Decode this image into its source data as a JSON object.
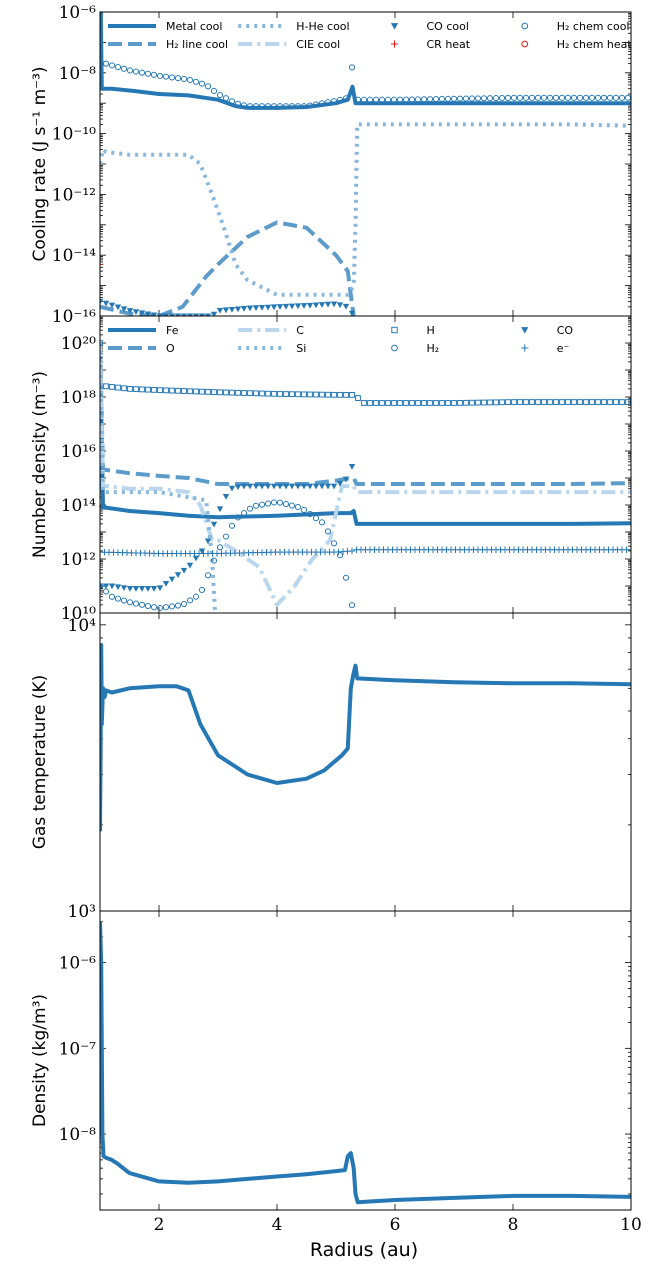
{
  "figure": {
    "xlabel": "Radius (au)",
    "x_ticks": [
      2,
      4,
      6,
      8,
      10
    ],
    "x_range": [
      1,
      10
    ]
  },
  "colors": {
    "c1": "#2678b4",
    "c2": "#5d9cca",
    "c3": "#8ab8dd",
    "c4": "#b9d6ec",
    "red": "#e41a1c"
  },
  "chart_data": [
    {
      "type": "line",
      "yscale": "log",
      "ylabel": "Cooling rate (J s⁻¹ m⁻³)",
      "ylim": [
        1e-16,
        1e-06
      ],
      "y_ticks": [
        {
          "v": 1e-16,
          "t": "10⁻¹⁶"
        },
        {
          "v": 1e-14,
          "t": "10⁻¹⁴"
        },
        {
          "v": 1e-12,
          "t": "10⁻¹²"
        },
        {
          "v": 1e-10,
          "t": "10⁻¹⁰"
        },
        {
          "v": 1e-08,
          "t": "10⁻⁸"
        },
        {
          "v": 1e-06,
          "t": "10⁻⁶"
        }
      ],
      "legend_placement": "top",
      "legend_cols": 4,
      "series": [
        {
          "name": "Metal cool",
          "style": "solid",
          "color": "c1",
          "x": [
            1.0,
            1.03,
            1.05,
            1.2,
            1.6,
            2.0,
            2.5,
            3.0,
            3.3,
            3.5,
            4.0,
            4.5,
            5.0,
            5.2,
            5.28,
            5.33,
            5.37,
            6.0,
            7.0,
            8.0,
            9.0,
            10.0
          ],
          "y": [
            5e-05,
            3e-09,
            3e-09,
            3e-09,
            2.5e-09,
            2e-09,
            1.8e-09,
            1.3e-09,
            8e-10,
            7e-10,
            7e-10,
            7.5e-10,
            1e-09,
            1.3e-09,
            3.5e-09,
            1e-09,
            1e-09,
            1e-09,
            1e-09,
            1e-09,
            1e-09,
            1e-09
          ]
        },
        {
          "name": "H₂ line cool",
          "style": "dash",
          "color": "c2",
          "x": [
            1.0,
            1.5,
            2.0,
            2.4,
            2.8,
            3.0,
            3.5,
            4.0,
            4.5,
            5.0,
            5.2,
            5.25,
            5.3
          ],
          "y": [
            2e-16,
            1.2e-16,
            1e-16,
            2e-16,
            2e-15,
            5e-15,
            4e-14,
            1.2e-13,
            8e-14,
            1e-14,
            3e-15,
            5e-16,
            1e-16
          ]
        },
        {
          "name": "H-He cool",
          "style": "dot",
          "color": "c3",
          "x": [
            1.0,
            1.05,
            1.1,
            1.5,
            2.0,
            2.5,
            2.7,
            2.9,
            3.1,
            3.3,
            3.5,
            4.0,
            4.5,
            5.0,
            5.2,
            5.3,
            5.33,
            5.36,
            5.5,
            6.0,
            7.0,
            8.0,
            9.0,
            10.0
          ],
          "y": [
            1e-11,
            3e-11,
            2.5e-11,
            2e-11,
            2e-11,
            2e-11,
            1e-11,
            1e-12,
            8e-14,
            5e-15,
            1.5e-15,
            5e-16,
            5e-16,
            5e-16,
            5e-16,
            1e-15,
            1e-13,
            2e-10,
            2e-10,
            2e-10,
            2e-10,
            2e-10,
            2e-10,
            1.8e-10
          ]
        },
        {
          "name": "CIE cool",
          "style": "dashdot",
          "color": "c4",
          "x": [],
          "y": []
        },
        {
          "name": "CO cool",
          "style": "marker-triangle",
          "color": "c1",
          "x": [
            1.0,
            1.5,
            2.0,
            2.5,
            2.9,
            3.0,
            3.5,
            4.0,
            4.5,
            5.0,
            5.2,
            5.3
          ],
          "y": [
            3e-16,
            1.5e-16,
            1e-16,
            1e-16,
            1e-16,
            1.5e-16,
            1.8e-16,
            2e-16,
            2.2e-16,
            2.5e-16,
            2e-16,
            1e-16
          ]
        },
        {
          "name": "CR heat",
          "style": "marker-plus",
          "color": "red",
          "x": [
            1.0,
            1.01,
            1.02,
            1.03
          ],
          "y": [
            5e-15,
            2e-15,
            8e-16,
            2e-16
          ]
        },
        {
          "name": "H₂ chem cool",
          "style": "marker-circle",
          "color": "c1",
          "x": [
            1.0,
            1.1,
            1.5,
            2.0,
            2.5,
            2.8,
            3.0,
            3.3,
            3.5,
            4.0,
            4.5,
            5.0,
            5.2,
            5.28,
            5.33,
            5.37,
            6.0,
            7.0,
            8.0,
            9.0,
            10.0
          ],
          "y": [
            1e-07,
            2e-08,
            1.2e-08,
            8e-09,
            6e-09,
            4e-09,
            2e-09,
            1e-09,
            8e-10,
            8e-10,
            8e-10,
            1.2e-09,
            1.5e-09,
            2e-08,
            1.5e-09,
            1.3e-09,
            1.3e-09,
            1.4e-09,
            1.5e-09,
            1.5e-09,
            1.5e-09
          ]
        },
        {
          "name": "H₂ chem heat",
          "style": "marker-circle",
          "color": "red",
          "x": [],
          "y": []
        }
      ]
    },
    {
      "type": "line",
      "yscale": "log",
      "ylabel": "Number density (m⁻³)",
      "ylim": [
        10000000000.0,
        1e+21
      ],
      "y_ticks": [
        {
          "v": 10000000000.0,
          "t": "10¹⁰"
        },
        {
          "v": 1000000000000.0,
          "t": "10¹²"
        },
        {
          "v": 100000000000000.0,
          "t": "10¹⁴"
        },
        {
          "v": 1e+16,
          "t": "10¹⁶"
        },
        {
          "v": 1e+18,
          "t": "10¹⁸"
        },
        {
          "v": 1e+20,
          "t": "10²⁰"
        }
      ],
      "legend_placement": "top",
      "legend_cols": 4,
      "series": [
        {
          "name": "Fe",
          "style": "solid",
          "color": "c1",
          "x": [
            1.0,
            1.05,
            1.1,
            1.5,
            2.0,
            2.5,
            3.0,
            4.0,
            5.0,
            5.25,
            5.3,
            5.35,
            6.0,
            7.0,
            8.0,
            9.0,
            10.0
          ],
          "y": [
            1e+20,
            80000000000000.0,
            80000000000000.0,
            60000000000000.0,
            50000000000000.0,
            40000000000000.0,
            35000000000000.0,
            40000000000000.0,
            50000000000000.0,
            50000000000000.0,
            60000000000000.0,
            20000000000000.0,
            20000000000000.0,
            20000000000000.0,
            20000000000000.0,
            20000000000000.0,
            21000000000000.0
          ]
        },
        {
          "name": "O",
          "style": "dash",
          "color": "c2",
          "x": [
            1.0,
            1.05,
            1.1,
            1.5,
            2.0,
            2.5,
            3.0,
            3.5,
            4.0,
            4.5,
            5.0,
            5.25,
            5.3,
            5.35,
            6.0,
            7.0,
            8.0,
            9.0,
            10.0
          ],
          "y": [
            1e+20,
            2000000000000000.0,
            2000000000000000.0,
            1500000000000000.0,
            1200000000000000.0,
            1000000000000000.0,
            600000000000000.0,
            600000000000000.0,
            600000000000000.0,
            600000000000000.0,
            800000000000000.0,
            1000000000000000.0,
            1000000000000000.0,
            600000000000000.0,
            600000000000000.0,
            600000000000000.0,
            600000000000000.0,
            600000000000000.0,
            650000000000000.0
          ]
        },
        {
          "name": "C",
          "style": "dashdot",
          "color": "c4",
          "x": [
            1.0,
            1.05,
            1.1,
            1.5,
            2.0,
            2.5,
            2.7,
            2.9,
            3.0,
            3.3,
            3.7,
            4.0,
            4.3,
            4.6,
            4.9,
            5.1,
            5.3,
            5.35,
            6.0,
            7.0,
            8.0,
            9.0,
            10.0
          ],
          "y": [
            1e+20,
            500000000000000.0,
            500000000000000.0,
            400000000000000.0,
            400000000000000.0,
            300000000000000.0,
            100000000000000.0,
            5000000000000.0,
            5000000000000.0,
            2000000000000.0,
            500000000000.0,
            20000000000.0,
            100000000000.0,
            1000000000000.0,
            5000000000000.0,
            500000000000000.0,
            500000000000000.0,
            300000000000000.0,
            300000000000000.0,
            300000000000000.0,
            300000000000000.0,
            300000000000000.0,
            300000000000000.0
          ]
        },
        {
          "name": "Si",
          "style": "dot",
          "color": "c3",
          "x": [
            1.0,
            1.05,
            1.2,
            2.0,
            2.8,
            2.9,
            2.95
          ],
          "y": [
            1e+20,
            300000000000000.0,
            300000000000000.0,
            300000000000000.0,
            150000000000000.0,
            1000000000000.0,
            10000000000.0
          ]
        },
        {
          "name": "H",
          "style": "marker-square",
          "color": "c1",
          "x": [
            1.0,
            1.05,
            1.1,
            1.5,
            2.0,
            3.0,
            4.0,
            5.0,
            5.25,
            5.3,
            5.35,
            5.4,
            6.0,
            7.0,
            8.0,
            9.0,
            10.0
          ],
          "y": [
            1e+20,
            3e+18,
            2.5e+18,
            2e+18,
            1.8e+18,
            1.5e+18,
            1.3e+18,
            1.2e+18,
            1.2e+18,
            1.2e+18,
            1.3e+18,
            6e+17,
            6e+17,
            6e+17,
            6.5e+17,
            6.5e+17,
            6.5e+17
          ]
        },
        {
          "name": "H₂",
          "style": "marker-circle",
          "color": "c1",
          "x": [
            1.0,
            1.2,
            1.5,
            2.0,
            2.4,
            2.7,
            3.0,
            3.3,
            3.6,
            4.0,
            4.4,
            4.8,
            5.1,
            5.3,
            5.35
          ],
          "y": [
            100000000000.0,
            40000000000.0,
            25000000000.0,
            15000000000.0,
            20000000000.0,
            50000000000.0,
            2000000000000.0,
            30000000000000.0,
            90000000000000.0,
            130000000000000.0,
            80000000000000.0,
            20000000000000.0,
            1000000000000.0,
            10000000000.0,
            10000000000.0
          ]
        },
        {
          "name": "CO",
          "style": "marker-triangle",
          "color": "c1",
          "x": [
            1.0,
            1.2,
            1.5,
            2.0,
            2.5,
            2.8,
            3.0,
            3.2,
            3.4,
            3.7,
            4.0,
            4.5,
            5.0,
            5.2,
            5.28,
            5.3,
            5.32
          ],
          "y": [
            100000000000.0,
            100000000000.0,
            80000000000.0,
            80000000000.0,
            500000000000.0,
            3000000000000.0,
            50000000000000.0,
            400000000000000.0,
            500000000000000.0,
            500000000000000.0,
            500000000000000.0,
            500000000000000.0,
            500000000000000.0,
            1000000000000000.0,
            3000000000000000.0,
            1000000000000.0,
            10000000000.0
          ]
        },
        {
          "name": "e⁻",
          "style": "marker-plus",
          "color": "c1",
          "x": [
            1.0,
            2.0,
            3.0,
            4.0,
            5.0,
            5.3,
            5.35,
            6.0,
            7.0,
            8.0,
            9.0,
            10.0
          ],
          "y": [
            1800000000000.0,
            1600000000000.0,
            1600000000000.0,
            1800000000000.0,
            1800000000000.0,
            2000000000000.0,
            2200000000000.0,
            2200000000000.0,
            2200000000000.0,
            2200000000000.0,
            2200000000000.0,
            2200000000000.0
          ]
        }
      ]
    },
    {
      "type": "line",
      "yscale": "log",
      "ylabel": "Gas temperature (K)",
      "ylim": [
        1000,
        11000
      ],
      "y_ticks": [
        {
          "v": 1000,
          "t": "10³"
        },
        {
          "v": 10000,
          "t": "10⁴"
        }
      ],
      "series": [
        {
          "name": "",
          "style": "solid",
          "color": "c1",
          "x": [
            1.0,
            1.01,
            1.02,
            1.03,
            1.05,
            1.08,
            1.1,
            1.2,
            1.5,
            2.0,
            2.3,
            2.5,
            2.7,
            3.0,
            3.5,
            4.0,
            4.5,
            4.8,
            5.1,
            5.2,
            5.25,
            5.3,
            5.33,
            5.36,
            6.0,
            7.0,
            8.0,
            9.0,
            10.0
          ],
          "y": [
            1900,
            3500,
            8500,
            4500,
            6000,
            5600,
            5900,
            5800,
            6000,
            6100,
            6100,
            5900,
            4500,
            3500,
            3000,
            2800,
            2900,
            3100,
            3500,
            3700,
            6000,
            6800,
            7200,
            6500,
            6400,
            6300,
            6250,
            6250,
            6200
          ]
        }
      ]
    },
    {
      "type": "line",
      "yscale": "log",
      "ylabel": "Density (kg/m³)",
      "ylim": [
        1.3e-09,
        4e-06
      ],
      "y_ticks": [
        {
          "v": 1e-08,
          "t": "10⁻⁸"
        },
        {
          "v": 1e-07,
          "t": "10⁻⁷"
        },
        {
          "v": 1e-06,
          "t": "10⁻⁶"
        }
      ],
      "series": [
        {
          "name": "",
          "style": "solid",
          "color": "c1",
          "x": [
            1.0,
            1.02,
            1.04,
            1.06,
            1.1,
            1.2,
            1.3,
            1.5,
            2.0,
            2.5,
            3.0,
            3.5,
            4.0,
            4.5,
            5.0,
            5.15,
            5.2,
            5.25,
            5.3,
            5.33,
            5.37,
            6.0,
            7.0,
            8.0,
            9.0,
            10.0
          ],
          "y": [
            3e-06,
            1e-06,
            1e-08,
            5.5e-09,
            5.3e-09,
            5e-09,
            4.5e-09,
            3.5e-09,
            2.8e-09,
            2.7e-09,
            2.8e-09,
            3e-09,
            3.2e-09,
            3.4e-09,
            3.7e-09,
            3.8e-09,
            5.5e-09,
            6e-09,
            4e-09,
            2e-09,
            1.6e-09,
            1.7e-09,
            1.8e-09,
            1.9e-09,
            1.9e-09,
            1.85e-09
          ]
        }
      ]
    }
  ]
}
